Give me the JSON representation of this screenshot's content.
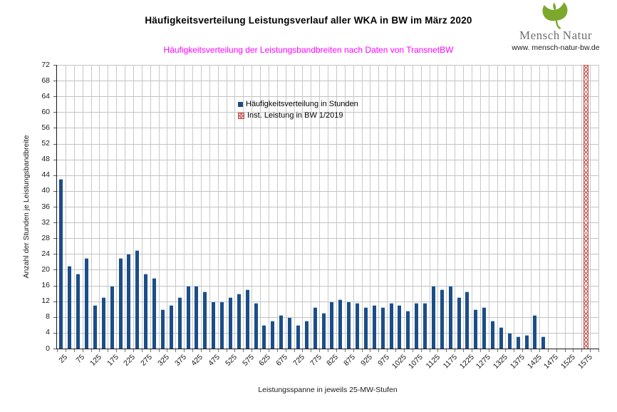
{
  "header": {
    "title": "Häufigkeitsverteilung Leistungsverlauf aller WKA in BW im März 2020",
    "subtitle": "Häufigkeitsverteilung der Leistungsbandbreiten nach Daten von TransnetBW",
    "subtitle_color": "#ff00ff"
  },
  "logo": {
    "brand_part1": "Mensch",
    "brand_part2": "Natur",
    "tagline": "www. mensch-natur-bw.de",
    "leaf_color": "#7ca82b",
    "brand_color": "#6f6f6f"
  },
  "legend": {
    "items": [
      {
        "label": "Häufigkeitsverteilung in Stunden",
        "swatch": "solid-blue"
      },
      {
        "label": "Inst. Leistung in BW 1/2019",
        "swatch": "red-crosshatch"
      }
    ]
  },
  "colors": {
    "bar_blue": "#1b4e89",
    "bar_blue_cap": "#9cc2e5",
    "hatch_red": "#c0504d",
    "grid_gray": "#c5c5c5",
    "subtitle_magenta": "#ff00ff"
  },
  "chart_data": {
    "type": "bar",
    "title": "Häufigkeitsverteilung Leistungsverlauf aller WKA in BW im März 2020",
    "subtitle": "Häufigkeitsverteilung der Leistungsbandbreiten nach Daten von TransnetBW",
    "xlabel": "Leistungsspanne in jeweils 25-MW-Stufen",
    "ylabel": "Anzahl der Stunden je Leistungsbandbreite",
    "ylim": [
      0,
      72
    ],
    "ytick_step": 4,
    "grid": true,
    "legend_position": "inside-top-center",
    "bin_width_mw": 25,
    "categories_mw": [
      25,
      50,
      75,
      100,
      125,
      150,
      175,
      200,
      225,
      250,
      275,
      300,
      325,
      350,
      375,
      400,
      425,
      450,
      475,
      500,
      525,
      550,
      575,
      600,
      625,
      650,
      675,
      700,
      725,
      750,
      775,
      800,
      825,
      850,
      875,
      900,
      925,
      950,
      975,
      1000,
      1025,
      1050,
      1075,
      1100,
      1125,
      1150,
      1175,
      1200,
      1225,
      1250,
      1275,
      1300,
      1325,
      1350,
      1375,
      1400,
      1425,
      1450,
      1475,
      1500,
      1525,
      1550,
      1575,
      1600
    ],
    "x_tick_labels": [
      "25",
      "75",
      "125",
      "175",
      "225",
      "275",
      "325",
      "375",
      "425",
      "475",
      "525",
      "575",
      "625",
      "675",
      "725",
      "775",
      "825",
      "875",
      "925",
      "975",
      "1025",
      "1075",
      "1125",
      "1175",
      "1225",
      "1275",
      "1325",
      "1375",
      "1425",
      "1475",
      "1525",
      "1575"
    ],
    "series": [
      {
        "name": "Häufigkeitsverteilung in Stunden",
        "type": "bar",
        "color": "#1b4e89",
        "values": [
          43,
          21,
          19,
          23,
          11,
          13,
          16,
          23,
          24,
          25,
          19,
          18,
          10,
          11,
          13,
          16,
          16,
          14.5,
          12,
          12,
          13,
          14,
          15,
          11.5,
          6,
          7,
          8.5,
          8,
          6,
          7,
          10.5,
          9,
          12,
          12.5,
          12,
          11.5,
          10.5,
          11,
          10.5,
          11.5,
          11,
          9.5,
          11.5,
          11.5,
          16,
          15,
          16,
          13,
          14.5,
          10,
          10.5,
          7,
          5.5,
          4,
          3,
          3.5,
          8.5,
          3,
          0,
          0,
          0,
          0,
          0,
          0
        ]
      },
      {
        "name": "Inst. Leistung in BW 1/2019",
        "type": "bar",
        "style": "red-crosshatch",
        "color": "#c0504d",
        "x_mw": 1575,
        "value": 72,
        "note": "reaches top of axis (clipped at 72)"
      }
    ]
  }
}
